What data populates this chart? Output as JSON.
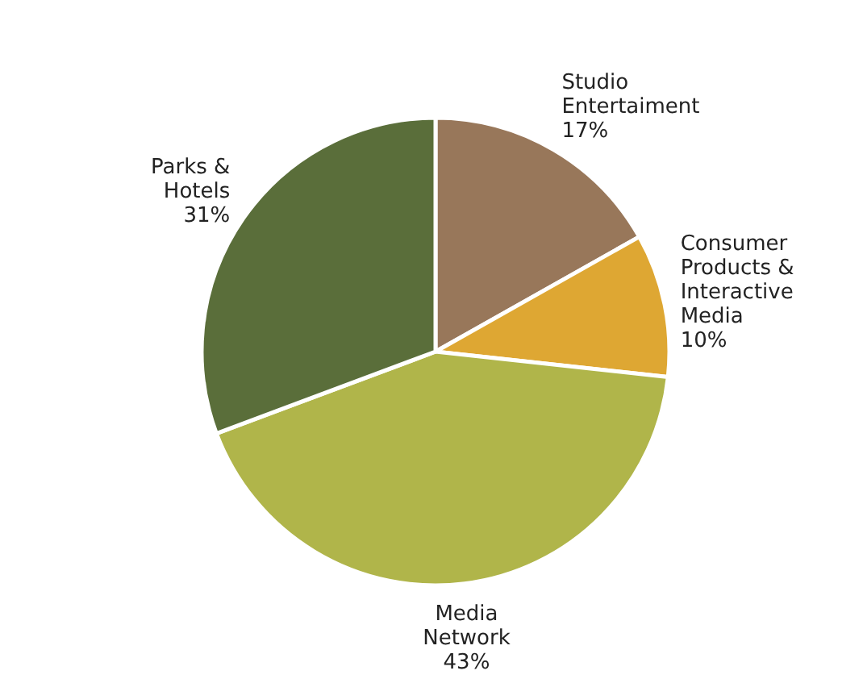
{
  "chart_data": {
    "type": "pie",
    "categories": [
      "Studio Entertaiment",
      "Consumer Products & Interactive Media",
      "Media Network",
      "Parks & Hotels"
    ],
    "values": [
      17,
      10,
      43,
      31
    ],
    "colors": [
      "#98775a",
      "#dea733",
      "#b0b54a",
      "#5a6e3a"
    ],
    "value_labels": [
      "17%",
      "10%",
      "43%",
      "31%"
    ]
  }
}
